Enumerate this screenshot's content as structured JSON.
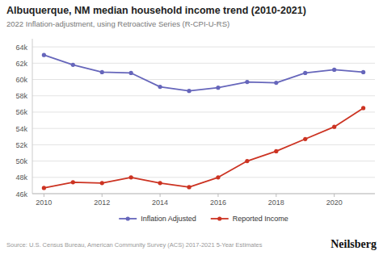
{
  "chart_data": {
    "type": "line",
    "title": "Albuquerque, NM median household income trend (2010-2021)",
    "subtitle": "2022 Inflation-adjustment, using Retroactive Series (R-CPI-U-RS)",
    "annotations": [
      "Source: U.S. Census Bureau, American Community Survey (ACS) 2017-2021 5-Year Estimates",
      "Neilsberg"
    ],
    "x": [
      2010,
      2011,
      2012,
      2013,
      2014,
      2015,
      2016,
      2017,
      2018,
      2019,
      2020,
      2021
    ],
    "series": [
      {
        "name": "Inflation Adjusted",
        "color": "#6666bb",
        "marker": "circle",
        "values": [
          63000,
          61800,
          60900,
          60800,
          59100,
          58600,
          59000,
          59700,
          59600,
          60800,
          61200,
          60900
        ]
      },
      {
        "name": "Reported Income",
        "color": "#cc3322",
        "marker": "circle",
        "values": [
          46700,
          47400,
          47300,
          48000,
          47300,
          46800,
          48000,
          50000,
          51200,
          52700,
          54200,
          56500
        ]
      }
    ],
    "xlim": [
      2009.6,
      2021.4
    ],
    "xticks": [
      2010,
      2012,
      2014,
      2016,
      2018,
      2020
    ],
    "ylim": [
      46000,
      65000
    ],
    "yticks": [
      {
        "value": 46000,
        "label": "46k"
      },
      {
        "value": 48000,
        "label": "48k"
      },
      {
        "value": 50000,
        "label": "50k"
      },
      {
        "value": 52000,
        "label": "52k"
      },
      {
        "value": 54000,
        "label": "54k"
      },
      {
        "value": 56000,
        "label": "56k"
      },
      {
        "value": 58000,
        "label": "58k"
      },
      {
        "value": 60000,
        "label": "60k"
      },
      {
        "value": 62000,
        "label": "62k"
      },
      {
        "value": 64000,
        "label": "64k"
      }
    ],
    "grid": true,
    "legend": "bottom"
  }
}
